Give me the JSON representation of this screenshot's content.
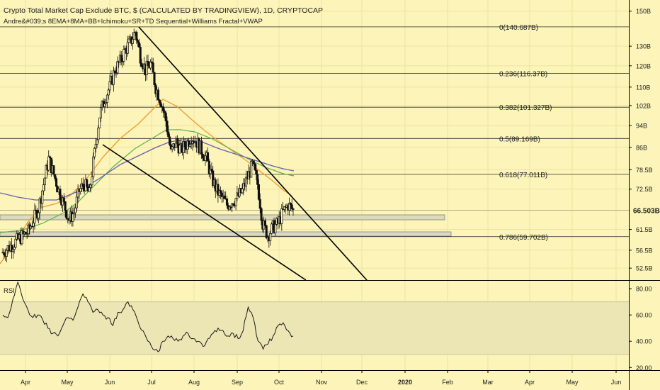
{
  "header": {
    "title": "Crypto Total Market Cap Exclude BTC, $ (CALCULATED BY TRADINGVIEW), 1D, CRYPTOCAP",
    "indicators": "Andre&#039;s 8EMA+8MA+BB+Ichimoku+SR+TD Sequential+Williams Fractal+VWAP"
  },
  "colors": {
    "background": "#fcf4b8",
    "candle": "#111111",
    "ema": "#f39a2a",
    "ma_green": "#5fb04f",
    "ma_purple": "#6a5fae",
    "zone": "#d8d8c0",
    "rsi_band": "#ece6b4"
  },
  "chart_data": [
    {
      "type": "candlestick",
      "title": "Crypto Total Market Cap Exclude BTC, $ (CALCULATED BY TRADINGVIEW), 1D, CRYPTOCAP",
      "x_labels": [
        "Apr",
        "May",
        "Jun",
        "Jul",
        "Aug",
        "Sep",
        "Oct",
        "Nov",
        "Dec",
        "2020",
        "Feb",
        "Mar",
        "Apr",
        "May",
        "Jun"
      ],
      "y_scale": "log",
      "y_ticks": [
        "150B",
        "130B",
        "120B",
        "110B",
        "102B",
        "94B",
        "86B",
        "78.5B",
        "72.5B",
        "66.5B",
        "61.5B",
        "56.5B",
        "52.5B"
      ],
      "current_price_label": "66.503B",
      "fib_levels": [
        {
          "label": "0(140.687B)",
          "value": 140.687
        },
        {
          "label": "0.236(116.37B)",
          "value": 116.37
        },
        {
          "label": "0.382(101.327B)",
          "value": 101.327
        },
        {
          "label": "0.5(89.169B)",
          "value": 89.169
        },
        {
          "label": "0.618(77.011B)",
          "value": 77.011
        },
        {
          "label": "0.786(59.702B)",
          "value": 59.702
        }
      ],
      "series": [
        {
          "values": [
            56,
            57,
            58,
            59,
            60,
            61,
            64,
            67,
            74,
            82,
            77,
            72,
            68,
            64,
            66,
            72,
            74,
            71,
            84,
            98,
            105,
            110,
            118,
            122,
            128,
            132,
            138,
            125,
            118,
            121,
            110,
            104,
            96,
            84,
            88,
            85,
            87,
            90,
            88,
            85,
            82,
            76,
            72,
            70,
            68,
            69,
            70,
            72,
            76,
            80,
            74,
            63,
            60,
            62,
            63,
            66,
            68,
            66.5
          ]
        }
      ]
    },
    {
      "type": "line",
      "title": "RSI",
      "y_ticks": [
        "80.00",
        "60.00",
        "40.00",
        "20.00"
      ],
      "series": [
        {
          "values": [
            60,
            58,
            72,
            85,
            72,
            64,
            58,
            60,
            56,
            50,
            46,
            44,
            52,
            58,
            56,
            66,
            76,
            70,
            62,
            64,
            60,
            58,
            52,
            62,
            64,
            70,
            64,
            55,
            48,
            40,
            34,
            32,
            40,
            44,
            42,
            40,
            44,
            46,
            42,
            40,
            36,
            42,
            46,
            50,
            48,
            44,
            46,
            42,
            48,
            66,
            58,
            40,
            34,
            38,
            44,
            52,
            54,
            48,
            44
          ]
        }
      ]
    }
  ]
}
